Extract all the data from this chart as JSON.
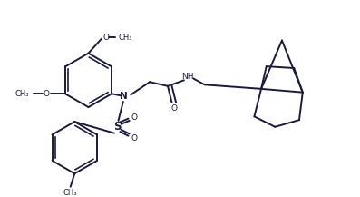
{
  "background_color": "#ffffff",
  "line_color": "#1a1a3e",
  "line_width": 1.4,
  "figsize": [
    3.97,
    2.17
  ],
  "dpi": 100,
  "xlim": [
    0,
    10
  ],
  "ylim": [
    0,
    5.5
  ]
}
